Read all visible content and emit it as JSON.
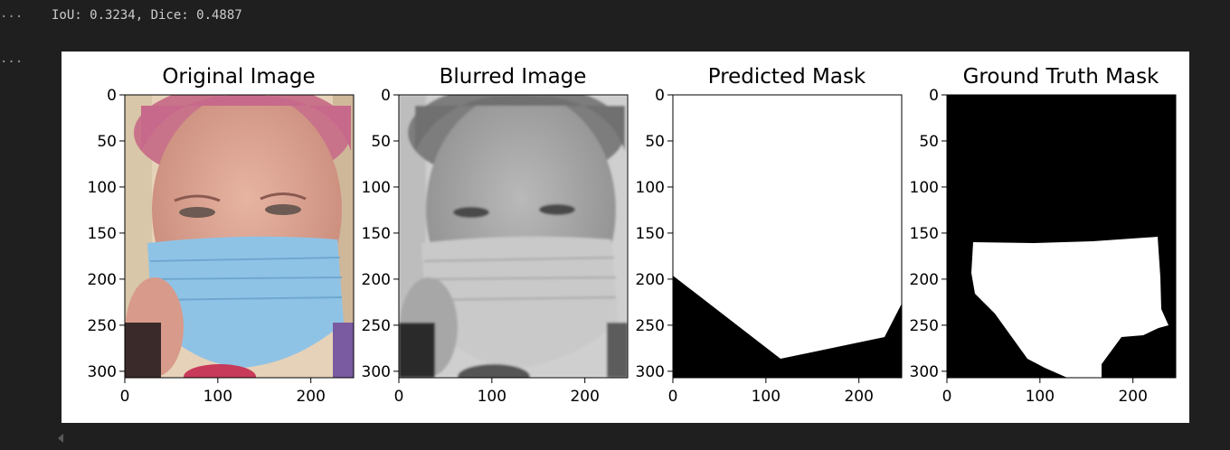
{
  "cell": {
    "gutter_output1": "···",
    "gutter_output2": "···",
    "output_text": "IoU: 0.3234, Dice: 0.4887"
  },
  "figure": {
    "panels": [
      {
        "title": "Original Image",
        "image": "original-face-photo"
      },
      {
        "title": "Blurred Image",
        "image": "grayscale-blurred-face-photo"
      },
      {
        "title": "Predicted Mask",
        "image": "predicted-binary-mask"
      },
      {
        "title": "Ground Truth Mask",
        "image": "ground-truth-binary-mask"
      }
    ],
    "x_ticks": [
      "0",
      "100",
      "200"
    ],
    "y_ticks": [
      "0",
      "50",
      "100",
      "150",
      "200",
      "250",
      "300"
    ],
    "colors": {
      "mask_fg": "#ffffff",
      "mask_bg": "#000000",
      "mask_blue": "#8fc3e6"
    }
  }
}
